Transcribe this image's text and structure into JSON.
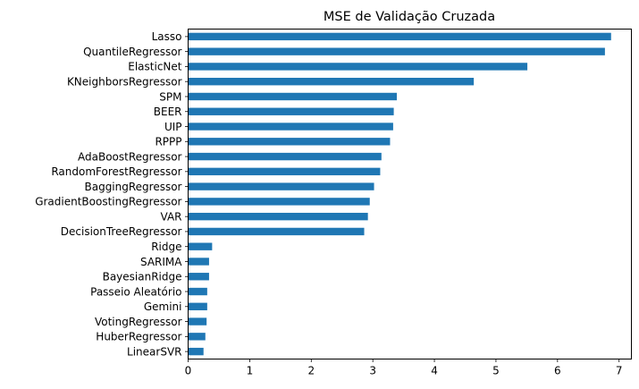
{
  "chart_data": {
    "type": "bar",
    "orientation": "horizontal",
    "title": "MSE de Validação Cruzada",
    "xlabel": "",
    "ylabel": "",
    "xlim": [
      0,
      7.2
    ],
    "xticks": [
      0,
      1,
      2,
      3,
      4,
      5,
      6,
      7
    ],
    "grid": false,
    "bar_color": "#1f77b4",
    "categories": [
      "Lasso",
      "QuantileRegressor",
      "ElasticNet",
      "KNeighborsRegressor",
      "SPM",
      "BEER",
      "UIP",
      "RPPP",
      "AdaBoostRegressor",
      "RandomForestRegressor",
      "BaggingRegressor",
      "GradientBoostingRegressor",
      "VAR",
      "DecisionTreeRegressor",
      "Ridge",
      "SARIMA",
      "BayesianRidge",
      "Passeio Aleatório",
      "Gemini",
      "VotingRegressor",
      "HuberRegressor",
      "LinearSVR"
    ],
    "values": [
      6.87,
      6.77,
      5.51,
      4.64,
      3.39,
      3.34,
      3.33,
      3.28,
      3.14,
      3.12,
      3.02,
      2.95,
      2.92,
      2.86,
      0.39,
      0.34,
      0.34,
      0.31,
      0.31,
      0.3,
      0.28,
      0.25
    ]
  }
}
